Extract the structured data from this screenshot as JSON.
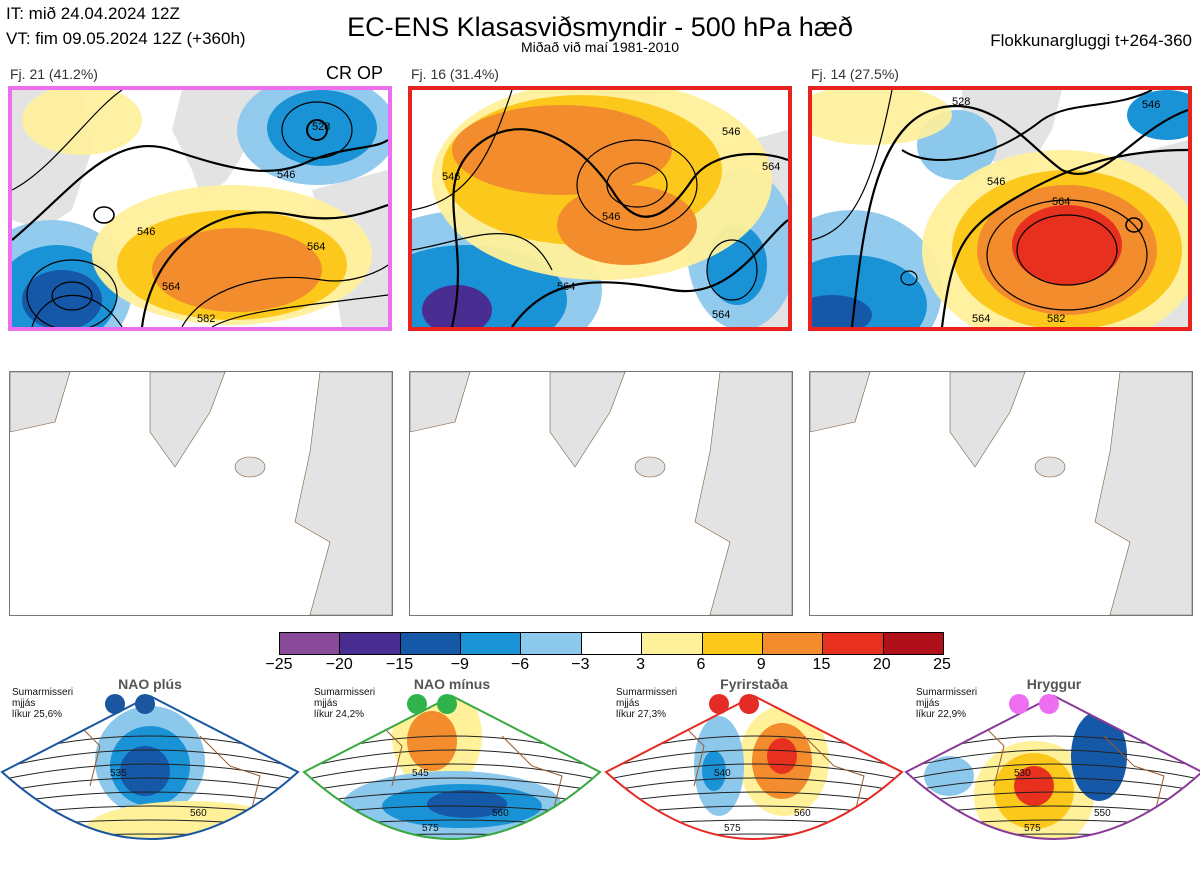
{
  "header": {
    "it": "IT: mið 24.04.2024 12Z",
    "vt": "VT: fim 09.05.2024 12Z  (+360h)",
    "title": "EC-ENS Klasasviðsmyndir - 500 hPa hæð",
    "subtitle": "Miðað við maí 1981-2010",
    "window": "Flokkunargluggi t+264-360"
  },
  "panels": [
    {
      "label": "Fj. 21 (41.2%)",
      "badge": "CR OP",
      "border_color": "#ee6ef0",
      "contours": [
        "546",
        "546",
        "564",
        "528",
        "564",
        "582"
      ]
    },
    {
      "label": "Fj. 16 (31.4%)",
      "badge": "",
      "border_color": "#e8231f",
      "contours": [
        "546",
        "546",
        "546",
        "564",
        "564",
        "564"
      ]
    },
    {
      "label": "Fj. 14 (27.5%)",
      "badge": "",
      "border_color": "#e8231f",
      "contours": [
        "528",
        "546",
        "546",
        "564",
        "564",
        "582"
      ]
    }
  ],
  "colorbar": {
    "ticks": [
      "−25",
      "−20",
      "−15",
      "−9",
      "−6",
      "−3",
      "3",
      "6",
      "9",
      "15",
      "20",
      "25"
    ],
    "colors": [
      "#8a4a9a",
      "#4a2d91",
      "#1558a8",
      "#1a93d6",
      "#8cc8ec",
      "#ffffff",
      "#fff09a",
      "#fcc81c",
      "#f28c2c",
      "#e8301f",
      "#b0101a"
    ]
  },
  "regimes": [
    {
      "title": "NAO plús",
      "info": [
        "Sumarmisseri",
        "mjjás",
        "líkur 25,6%"
      ],
      "color": "#1b56a0",
      "dot": "#1b56a0",
      "contours": [
        "535",
        "560"
      ]
    },
    {
      "title": "NAO mínus",
      "info": [
        "Sumarmisseri",
        "mjjás",
        "líkur 24,2%"
      ],
      "color": "#3aa840",
      "dot": "#2fb34a",
      "contours": [
        "545",
        "560",
        "575"
      ]
    },
    {
      "title": "Fyrirstaða",
      "info": [
        "Sumarmisseri",
        "mjjás",
        "líkur 27,3%"
      ],
      "color": "#e42b25",
      "dot": "#e42b25",
      "contours": [
        "540",
        "560",
        "575"
      ]
    },
    {
      "title": "Hryggur",
      "info": [
        "Sumarmisseri",
        "mjjás",
        "líkur 22,9%"
      ],
      "color": "#8a3a98",
      "dot": "#ee6ef0",
      "contours": [
        "530",
        "550",
        "575"
      ]
    }
  ]
}
